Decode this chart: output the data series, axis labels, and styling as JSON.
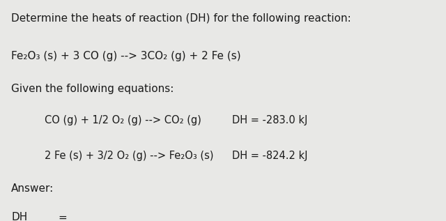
{
  "bg_color": "#e8e8e6",
  "text_color": "#1a1a1a",
  "title": "Determine the heats of reaction (DH) for the following reaction:",
  "reaction": "Fe₂O₃ (s) + 3 CO (g) --> 3CO₂ (g) + 2 Fe (s)",
  "given": "Given the following equations:",
  "eq1_left": "CO (g) + 1/2 O₂ (g) --> CO₂ (g)",
  "eq1_right": "DH = -283.0 kJ",
  "eq2_left": "2 Fe (s) + 3/2 O₂ (g) --> Fe₂O₃ (s)",
  "eq2_right": "DH = -824.2 kJ",
  "answer_label": "Answer:",
  "title_fs": 11.0,
  "body_fs": 11.0,
  "eq_fs": 10.5
}
